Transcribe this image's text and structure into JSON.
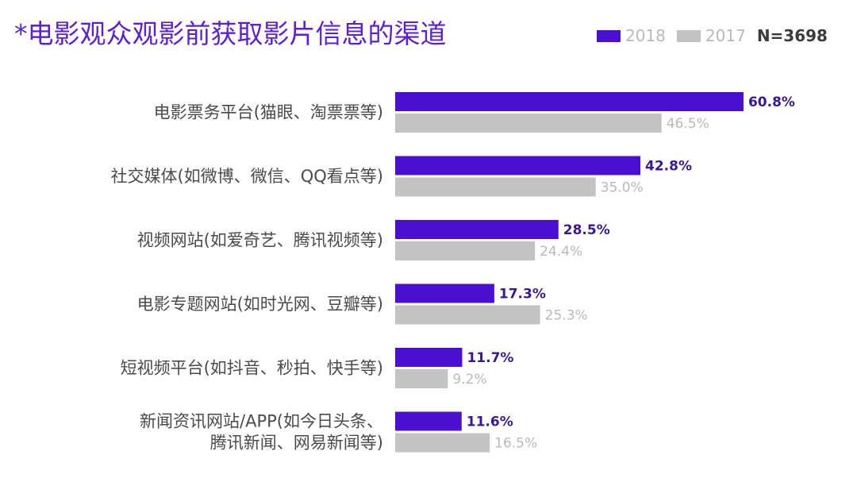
{
  "colors": {
    "accent_2018": "#4a0fd0",
    "series_2017": "#c3c3c3",
    "title": "#5a1fd6"
  },
  "legend": {
    "items": [
      "2018",
      "2017"
    ],
    "sample_size": "N=3698"
  },
  "chart_data": {
    "type": "bar",
    "orientation": "horizontal",
    "title": "*电影观众观影前获取影片信息的渠道",
    "categories": [
      [
        "电影票务平台(猫眼、淘票票等)"
      ],
      [
        "社交媒体(如微博、微信、QQ看点等)"
      ],
      [
        "视频网站(如爱奇艺、腾讯视频等)"
      ],
      [
        "电影专题网站(如时光网、豆瓣等)"
      ],
      [
        "短视频平台(如抖音、秒拍、快手等)"
      ],
      [
        "新闻资讯网站/APP(如今日头条、",
        "腾讯新闻、网易新闻等)"
      ]
    ],
    "series": [
      {
        "name": "2018",
        "values": [
          60.8,
          42.8,
          28.5,
          17.3,
          11.7,
          11.6
        ],
        "labels": [
          "60.8%",
          "42.8%",
          "28.5%",
          "17.3%",
          "11.7%",
          "11.6%"
        ]
      },
      {
        "name": "2017",
        "values": [
          46.5,
          35.0,
          24.4,
          25.3,
          9.2,
          16.5
        ],
        "labels": [
          "46.5%",
          "35.0%",
          "24.4%",
          "25.3%",
          "9.2%",
          "16.5%"
        ]
      }
    ],
    "xlim": [
      0,
      100
    ],
    "grid": false,
    "legend_position": "top-right"
  }
}
